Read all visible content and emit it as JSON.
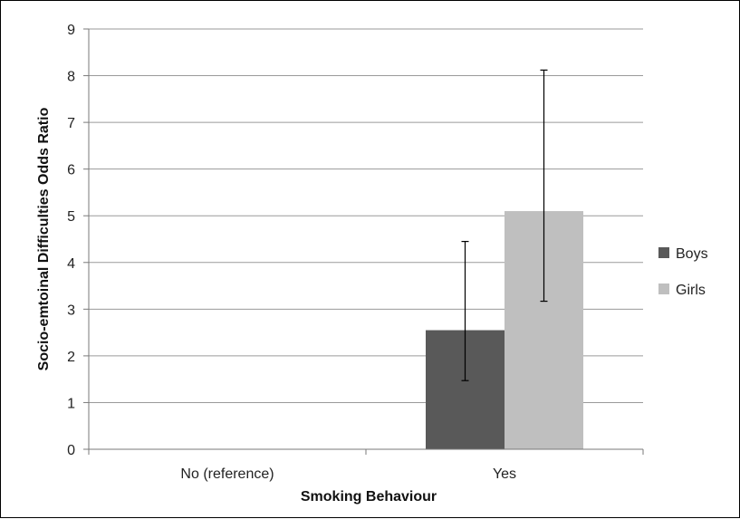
{
  "chart_data": {
    "type": "bar",
    "title": "",
    "xlabel": "Smoking Behaviour",
    "ylabel": "Socio-emtoinal Difficulties  Odds Ratio",
    "categories": [
      "No (reference)",
      "Yes"
    ],
    "ylim": [
      0,
      9
    ],
    "yticks": [
      0,
      1,
      2,
      3,
      4,
      5,
      6,
      7,
      8,
      9
    ],
    "grid": true,
    "legend_position": "right",
    "series": [
      {
        "name": "Boys",
        "color": "#595959",
        "values": [
          null,
          2.55
        ],
        "error_low": [
          null,
          1.47
        ],
        "error_high": [
          null,
          4.45
        ]
      },
      {
        "name": "Girls",
        "color": "#bfbfbf",
        "values": [
          null,
          5.1
        ],
        "error_low": [
          null,
          3.17
        ],
        "error_high": [
          null,
          8.12
        ]
      }
    ]
  }
}
